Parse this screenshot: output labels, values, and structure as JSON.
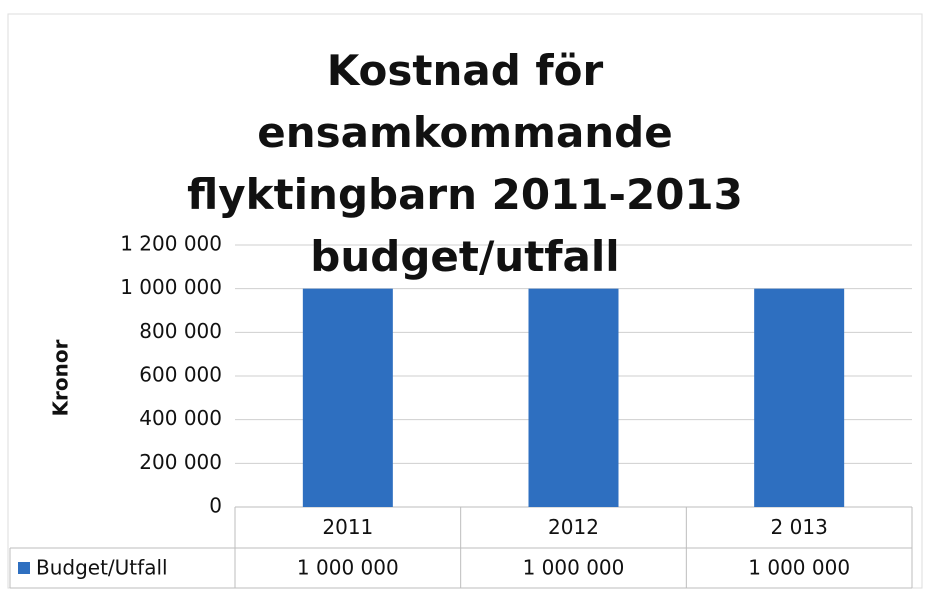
{
  "chart_data": {
    "type": "bar",
    "title": "Kostnad för ensamkommande flyktingbarn 2011-2013 budget/utfall",
    "y_label": "Kronor",
    "categories": [
      "2011",
      "2012",
      "2 013"
    ],
    "series": [
      {
        "name": "Budget/Utfall",
        "color": "#2e6fc0",
        "values": [
          1000000,
          1000000,
          1000000
        ],
        "value_labels": [
          "1 000 000",
          "1 000 000",
          "1 000 000"
        ]
      }
    ],
    "ylim": [
      0,
      1200000
    ],
    "yticks": [
      0,
      {
        "value": 200000,
        "label": "200 000"
      },
      {
        "value": 400000,
        "label": "400 000"
      },
      {
        "value": 600000,
        "label": "600 000"
      },
      {
        "value": 800000,
        "label": "800 000"
      },
      {
        "value": 1000000,
        "label": "1 000 000"
      },
      {
        "value": 1200000,
        "label": "1 200 000"
      }
    ],
    "grid": true
  }
}
